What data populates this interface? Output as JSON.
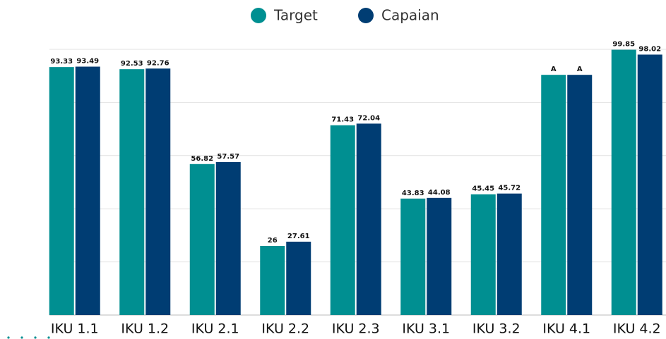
{
  "chart_data": {
    "type": "bar",
    "categories": [
      "IKU 1.1",
      "IKU 1.2",
      "IKU 2.1",
      "IKU 2.2",
      "IKU 2.3",
      "IKU 3.1",
      "IKU 3.2",
      "IKU 4.1",
      "IKU 4.2"
    ],
    "series": [
      {
        "name": "Target",
        "color": "#008f91",
        "values": [
          93.33,
          92.53,
          56.82,
          26,
          71.43,
          43.83,
          45.45,
          90.4,
          99.85
        ],
        "value_labels": [
          "93.33",
          "92.53",
          "56.82",
          "26",
          "71.43",
          "43.83",
          "45.45",
          "A",
          "99.85"
        ]
      },
      {
        "name": "Capaian",
        "color": "#003d73",
        "values": [
          93.49,
          92.76,
          57.57,
          27.61,
          72.04,
          44.08,
          45.72,
          90.4,
          98.02
        ],
        "value_labels": [
          "93.49",
          "92.76",
          "57.57",
          "27.61",
          "72.04",
          "44.08",
          "45.72",
          "A",
          "98.02"
        ]
      }
    ],
    "ylim": [
      0,
      100
    ],
    "yticks": [
      0,
      20,
      40,
      60,
      80,
      100
    ],
    "grid": true,
    "legend": "top"
  }
}
